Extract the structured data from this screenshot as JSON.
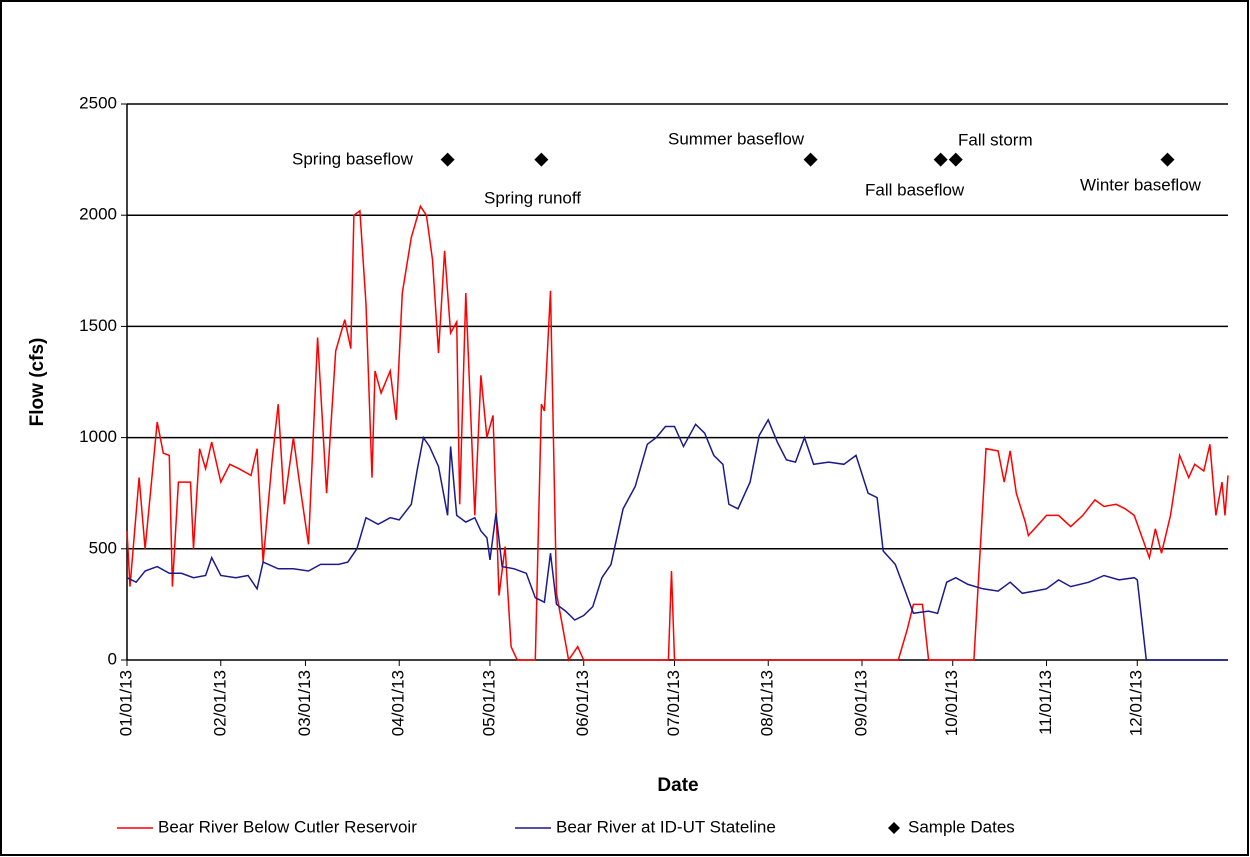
{
  "chart_data": {
    "type": "line",
    "ylabel": "Flow (cfs)",
    "xlabel": "Date",
    "ylim": [
      0,
      2500
    ],
    "yticks": [
      0,
      500,
      1000,
      1500,
      2000,
      2500
    ],
    "grid": true,
    "xlim": [
      "01/01/13",
      "12/31/13"
    ],
    "xticks": [
      "01/01/13",
      "02/01/13",
      "03/01/13",
      "04/01/13",
      "05/01/13",
      "06/01/13",
      "07/01/13",
      "08/01/13",
      "09/01/13",
      "10/01/13",
      "11/01/13",
      "12/01/13"
    ],
    "legend": "bottom",
    "series": [
      {
        "name": "Bear River Below Cutler Reservoir",
        "color": "#ff0000",
        "x": [
          "01/01/13",
          "01/02/13",
          "01/05/13",
          "01/07/13",
          "01/11/13",
          "01/13/13",
          "01/15/13",
          "01/16/13",
          "01/18/13",
          "01/22/13",
          "01/23/13",
          "01/25/13",
          "01/27/13",
          "01/29/13",
          "02/01/13",
          "02/04/13",
          "02/07/13",
          "02/11/13",
          "02/13/13",
          "02/15/13",
          "02/18/13",
          "02/20/13",
          "02/22/13",
          "02/25/13",
          "02/27/13",
          "03/02/13",
          "03/05/13",
          "03/08/13",
          "03/11/13",
          "03/14/13",
          "03/16/13",
          "03/17/13",
          "03/19/13",
          "03/21/13",
          "03/23/13",
          "03/24/13",
          "03/26/13",
          "03/29/13",
          "03/31/13",
          "04/02/13",
          "04/05/13",
          "04/08/13",
          "04/10/13",
          "04/12/13",
          "04/14/13",
          "04/16/13",
          "04/18/13",
          "04/20/13",
          "04/21/13",
          "04/23/13",
          "04/26/13",
          "04/28/13",
          "04/30/13",
          "05/02/13",
          "05/04/13",
          "05/06/13",
          "05/08/13",
          "05/10/13",
          "05/16/13",
          "05/18/13",
          "05/19/13",
          "05/21/13",
          "05/23/13",
          "05/25/13",
          "05/27/13",
          "05/30/13",
          "06/01/13",
          "06/29/13",
          "06/30/13",
          "07/01/13",
          "09/13/13",
          "09/16/13",
          "09/18/13",
          "09/21/13",
          "09/23/13",
          "10/08/13",
          "10/12/13",
          "10/16/13",
          "10/18/13",
          "10/20/13",
          "10/22/13",
          "10/25/13",
          "10/26/13",
          "10/30/13",
          "11/01/13",
          "11/05/13",
          "11/09/13",
          "11/13/13",
          "11/17/13",
          "11/20/13",
          "11/24/13",
          "11/27/13",
          "11/30/13",
          "12/05/13",
          "12/07/13",
          "12/09/13",
          "12/12/13",
          "12/15/13",
          "12/18/13",
          "12/20/13",
          "12/23/13",
          "12/25/13",
          "12/27/13",
          "12/29/13",
          "12/30/13",
          "12/31/13"
        ],
        "values": [
          580,
          330,
          820,
          500,
          1070,
          930,
          920,
          330,
          800,
          800,
          500,
          950,
          860,
          980,
          800,
          880,
          860,
          830,
          950,
          440,
          900,
          1150,
          700,
          1000,
          800,
          520,
          1450,
          750,
          1390,
          1530,
          1400,
          2000,
          2020,
          1600,
          820,
          1300,
          1200,
          1300,
          1080,
          1650,
          1900,
          2040,
          2000,
          1800,
          1380,
          1840,
          1470,
          1520,
          700,
          1650,
          650,
          1280,
          1000,
          1100,
          290,
          510,
          60,
          0,
          0,
          1150,
          1120,
          1660,
          300,
          150,
          0,
          60,
          0,
          0,
          400,
          0,
          0,
          140,
          250,
          250,
          0,
          0,
          950,
          940,
          800,
          940,
          750,
          620,
          560,
          620,
          650,
          650,
          600,
          650,
          720,
          690,
          700,
          680,
          650,
          460,
          590,
          480,
          650,
          920,
          820,
          880,
          850,
          970,
          650,
          800,
          650,
          830
        ]
      },
      {
        "name": "Bear River at ID-UT Stateline",
        "color": "#1a1a8c",
        "x": [
          "01/01/13",
          "01/04/13",
          "01/07/13",
          "01/11/13",
          "01/15/13",
          "01/19/13",
          "01/23/13",
          "01/27/13",
          "01/29/13",
          "02/01/13",
          "02/06/13",
          "02/10/13",
          "02/13/13",
          "02/15/13",
          "02/20/13",
          "02/25/13",
          "03/02/13",
          "03/06/13",
          "03/12/13",
          "03/15/13",
          "03/18/13",
          "03/21/13",
          "03/25/13",
          "03/29/13",
          "04/01/13",
          "04/05/13",
          "04/07/13",
          "04/09/13",
          "04/11/13",
          "04/14/13",
          "04/17/13",
          "04/18/13",
          "04/20/13",
          "04/23/13",
          "04/26/13",
          "04/28/13",
          "04/30/13",
          "05/01/13",
          "05/03/13",
          "05/05/13",
          "05/09/13",
          "05/13/13",
          "05/16/13",
          "05/19/13",
          "05/21/13",
          "05/23/13",
          "05/26/13",
          "05/29/13",
          "06/01/13",
          "06/04/13",
          "06/07/13",
          "06/10/13",
          "06/14/13",
          "06/18/13",
          "06/22/13",
          "06/25/13",
          "06/28/13",
          "07/01/13",
          "07/04/13",
          "07/08/13",
          "07/11/13",
          "07/14/13",
          "07/17/13",
          "07/19/13",
          "07/22/13",
          "07/26/13",
          "07/29/13",
          "08/01/13",
          "08/04/13",
          "08/07/13",
          "08/10/13",
          "08/13/13",
          "08/16/13",
          "08/21/13",
          "08/26/13",
          "08/30/13",
          "09/03/13",
          "09/06/13",
          "09/08/13",
          "09/12/13",
          "09/15/13",
          "09/18/13",
          "09/23/13",
          "09/26/13",
          "09/29/13",
          "10/02/13",
          "10/06/13",
          "10/11/13",
          "10/16/13",
          "10/20/13",
          "10/24/13",
          "10/28/13",
          "11/01/13",
          "11/05/13",
          "11/09/13",
          "11/15/13",
          "11/20/13",
          "11/25/13",
          "11/30/13",
          "12/01/13",
          "12/04/13",
          "12/31/13"
        ],
        "values": [
          370,
          350,
          400,
          420,
          390,
          390,
          370,
          380,
          460,
          380,
          370,
          380,
          320,
          440,
          410,
          410,
          400,
          430,
          430,
          440,
          500,
          640,
          610,
          640,
          630,
          700,
          860,
          1000,
          960,
          870,
          650,
          960,
          650,
          620,
          640,
          580,
          550,
          450,
          660,
          420,
          410,
          390,
          280,
          260,
          480,
          250,
          220,
          180,
          200,
          240,
          370,
          430,
          680,
          780,
          970,
          1000,
          1050,
          1050,
          960,
          1060,
          1020,
          920,
          880,
          700,
          680,
          800,
          1010,
          1080,
          980,
          900,
          890,
          1000,
          880,
          890,
          880,
          920,
          750,
          730,
          490,
          430,
          320,
          210,
          220,
          210,
          350,
          370,
          340,
          320,
          310,
          350,
          300,
          310,
          320,
          360,
          330,
          350,
          380,
          360,
          370,
          360,
          0,
          0
        ]
      },
      {
        "name": "Sample Dates",
        "color": "#000000",
        "marker": "diamond",
        "x": [
          "04/17/13",
          "05/18/13",
          "08/15/13",
          "09/27/13",
          "10/02/13",
          "12/11/13"
        ],
        "values": [
          2250,
          2250,
          2250,
          2250,
          2250,
          2250
        ]
      }
    ],
    "annotations": [
      "Spring baseflow",
      "Spring runoff",
      "Summer baseflow",
      "Fall baseflow",
      "Fall storm",
      "Winter baseflow"
    ]
  }
}
